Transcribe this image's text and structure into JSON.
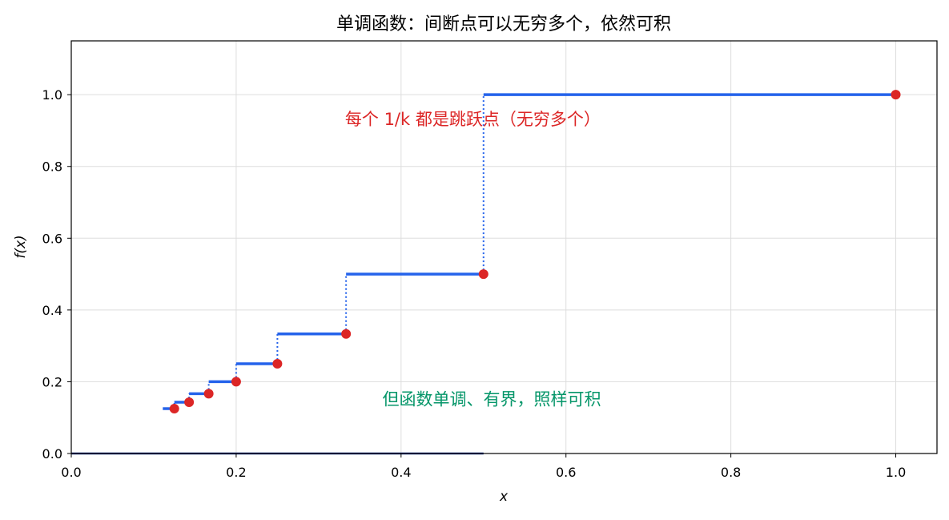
{
  "chart_data": {
    "type": "line",
    "title": "单调函数：间断点可以无穷多个，依然可积",
    "xlabel": "x",
    "ylabel": "f(x)",
    "xlim": [
      0.0,
      1.05
    ],
    "ylim": [
      0.0,
      1.15
    ],
    "xticks": [
      "0.0",
      "0.2",
      "0.4",
      "0.6",
      "0.8",
      "1.0"
    ],
    "yticks": [
      "0.0",
      "0.2",
      "0.4",
      "0.6",
      "0.8",
      "1.0"
    ],
    "grid": true,
    "step_color": "#2563eb",
    "point_color": "#dc2626",
    "steps": [
      {
        "x0": 0.111,
        "x1": 0.125,
        "y": 0.125
      },
      {
        "x0": 0.125,
        "x1": 0.1429,
        "y": 0.1429
      },
      {
        "x0": 0.1429,
        "x1": 0.1667,
        "y": 0.1667
      },
      {
        "x0": 0.1667,
        "x1": 0.2,
        "y": 0.2
      },
      {
        "x0": 0.2,
        "x1": 0.25,
        "y": 0.25
      },
      {
        "x0": 0.25,
        "x1": 0.3333,
        "y": 0.3333
      },
      {
        "x0": 0.3333,
        "x1": 0.5,
        "y": 0.5
      },
      {
        "x0": 0.5,
        "x1": 1.0,
        "y": 1.0
      }
    ],
    "jump_points": [
      {
        "x": 0.125,
        "y": 0.125
      },
      {
        "x": 0.1429,
        "y": 0.1429
      },
      {
        "x": 0.1667,
        "y": 0.1667
      },
      {
        "x": 0.2,
        "y": 0.2
      },
      {
        "x": 0.25,
        "y": 0.25
      },
      {
        "x": 0.3333,
        "y": 0.3333
      },
      {
        "x": 0.5,
        "y": 0.5
      },
      {
        "x": 1.0,
        "y": 1.0
      }
    ],
    "zero_segment": {
      "x0": 0.0,
      "x1": 0.5,
      "y": 0.0,
      "color": "#1e3a8a"
    },
    "annotations": [
      {
        "text": "每个 1/k 都是跳跃点（无穷多个）",
        "x": 0.487,
        "y": 0.915,
        "color": "#dc2626"
      },
      {
        "text": "但函数单调、有界，照样可积",
        "x": 0.51,
        "y": 0.135,
        "color": "#059669"
      }
    ]
  }
}
